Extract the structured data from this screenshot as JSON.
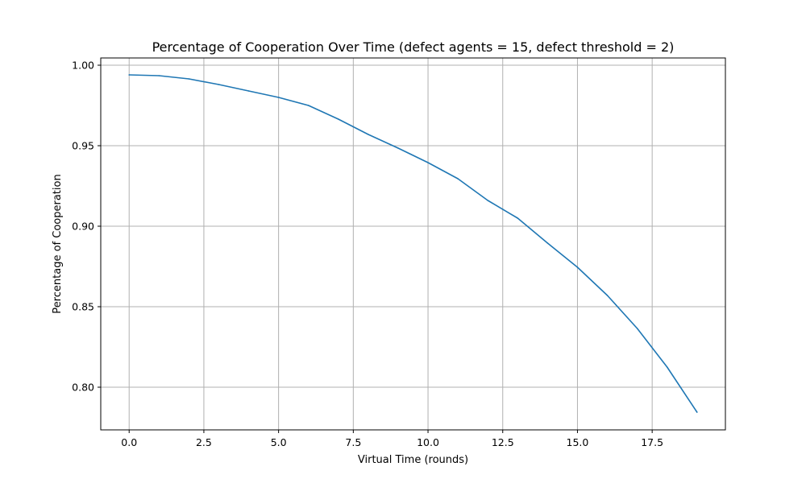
{
  "chart_data": {
    "type": "line",
    "title": "Percentage of Cooperation Over Time (defect agents = 15, defect threshold = 2)",
    "xlabel": "Virtual Time (rounds)",
    "ylabel": "Percentage of Cooperation",
    "xlim": [
      -0.95,
      19.95
    ],
    "ylim": [
      0.7735,
      1.0045
    ],
    "x_ticks": [
      0.0,
      2.5,
      5.0,
      7.5,
      10.0,
      12.5,
      15.0,
      17.5
    ],
    "x_tick_labels": [
      "0.0",
      "2.5",
      "5.0",
      "7.5",
      "10.0",
      "12.5",
      "15.0",
      "17.5"
    ],
    "y_ticks": [
      0.8,
      0.85,
      0.9,
      0.95,
      1.0
    ],
    "y_tick_labels": [
      "0.80",
      "0.85",
      "0.90",
      "0.95",
      "1.00"
    ],
    "grid": true,
    "series": [
      {
        "color": "#1f77b4",
        "x": [
          0,
          1,
          2,
          3,
          4,
          5,
          6,
          7,
          8,
          9,
          10,
          11,
          12,
          13,
          14,
          15,
          16,
          17,
          18,
          19
        ],
        "values": [
          0.994,
          0.9935,
          0.9915,
          0.988,
          0.984,
          0.98,
          0.975,
          0.9665,
          0.957,
          0.9485,
          0.9395,
          0.9295,
          0.916,
          0.905,
          0.8895,
          0.8745,
          0.857,
          0.8365,
          0.8125,
          0.7845
        ]
      }
    ]
  }
}
